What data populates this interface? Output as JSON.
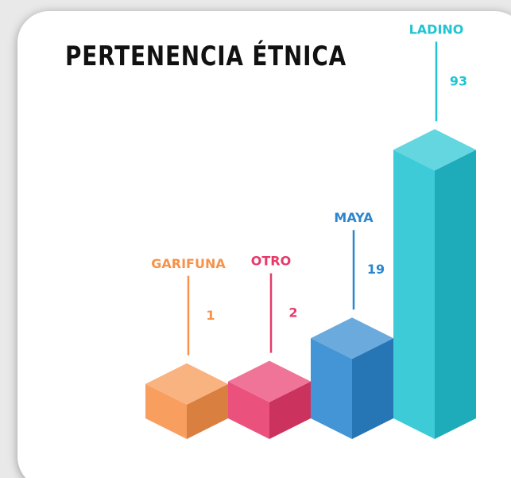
{
  "chart_data": {
    "type": "bar",
    "title": "PERTENENCIA ÉTNICA",
    "categories": [
      "GARIFUNA",
      "OTRO",
      "MAYA",
      "LADINO"
    ],
    "values": [
      1,
      2,
      19,
      93
    ],
    "colors": [
      "#f7924a",
      "#e8396b",
      "#2b86cf",
      "#22c4d3"
    ]
  }
}
